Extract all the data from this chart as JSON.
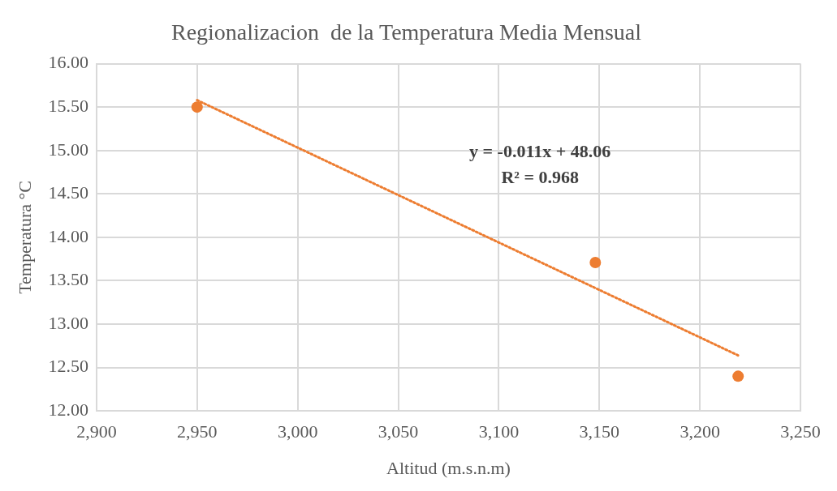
{
  "chart_data": {
    "type": "scatter",
    "title": "Regionalizacion  de la Temperatura Media Mensual",
    "xlabel": "Altitud (m.s.n.m)",
    "ylabel": "Temperatura °C",
    "xlim": [
      2900,
      3250
    ],
    "xticks": [
      {
        "value": 2900,
        "label": "2,900"
      },
      {
        "value": 2950,
        "label": "2,950"
      },
      {
        "value": 3000,
        "label": "3,000"
      },
      {
        "value": 3050,
        "label": "3,050"
      },
      {
        "value": 3100,
        "label": "3,100"
      },
      {
        "value": 3150,
        "label": "3,150"
      },
      {
        "value": 3200,
        "label": "3,200"
      },
      {
        "value": 3250,
        "label": "3,250"
      }
    ],
    "ylim": [
      12,
      16
    ],
    "yticks": [
      {
        "value": 12,
        "label": "12.00"
      },
      {
        "value": 12.5,
        "label": "12.50"
      },
      {
        "value": 13,
        "label": "13.00"
      },
      {
        "value": 13.5,
        "label": "13.50"
      },
      {
        "value": 14,
        "label": "14.00"
      },
      {
        "value": 14.5,
        "label": "14.50"
      },
      {
        "value": 15,
        "label": "15.00"
      },
      {
        "value": 15.5,
        "label": "15.50"
      },
      {
        "value": 16,
        "label": "16.00"
      }
    ],
    "grid": true,
    "legend": false,
    "series": [
      {
        "color": "#ed7d31",
        "x": [
          2950,
          3148,
          3219
        ],
        "values": [
          15.5,
          13.71,
          12.4
        ],
        "marker": "circle"
      },
      {
        "type": "line",
        "color": "#ed7d31",
        "x": [
          2950,
          3219
        ],
        "values": [
          15.58,
          12.64
        ],
        "marker": "none",
        "line_style": "dotted"
      }
    ],
    "annotations": [
      "y = -0.011x + 48.06",
      "R² = 0.968"
    ]
  }
}
